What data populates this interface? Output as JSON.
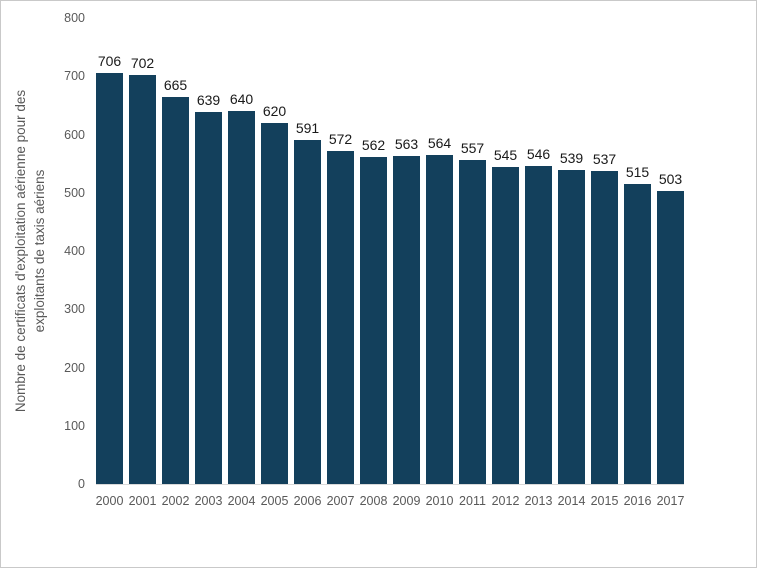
{
  "frame": {
    "background": "#ffffff",
    "border_color": "#c9c9c9"
  },
  "chart_data": {
    "type": "bar",
    "title": "",
    "xlabel": "",
    "ylabel": "Nombre de certificats d'exploitation aérienne pour des exploitants de taxis aériens",
    "ylabel_lines": [
      "Nombre de certificats d'exploitation aérienne pour des",
      "exploitants de taxis aériens"
    ],
    "categories": [
      "2000",
      "2001",
      "2002",
      "2003",
      "2004",
      "2005",
      "2006",
      "2007",
      "2008",
      "2009",
      "2010",
      "2011",
      "2012",
      "2013",
      "2014",
      "2015",
      "2016",
      "2017"
    ],
    "values": [
      706,
      702,
      665,
      639,
      640,
      620,
      591,
      572,
      562,
      563,
      564,
      557,
      545,
      546,
      539,
      537,
      515,
      503
    ],
    "ylim": [
      0,
      800
    ],
    "yticks": [
      0,
      100,
      200,
      300,
      400,
      500,
      600,
      700,
      800
    ],
    "grid": "off",
    "legend": "none",
    "data_labels": "above-bars",
    "bar_color": "#13405c",
    "axis_line_color": "#d9d9d9",
    "tick_label_color": "#595959",
    "data_label_color": "#1a1a1a"
  }
}
